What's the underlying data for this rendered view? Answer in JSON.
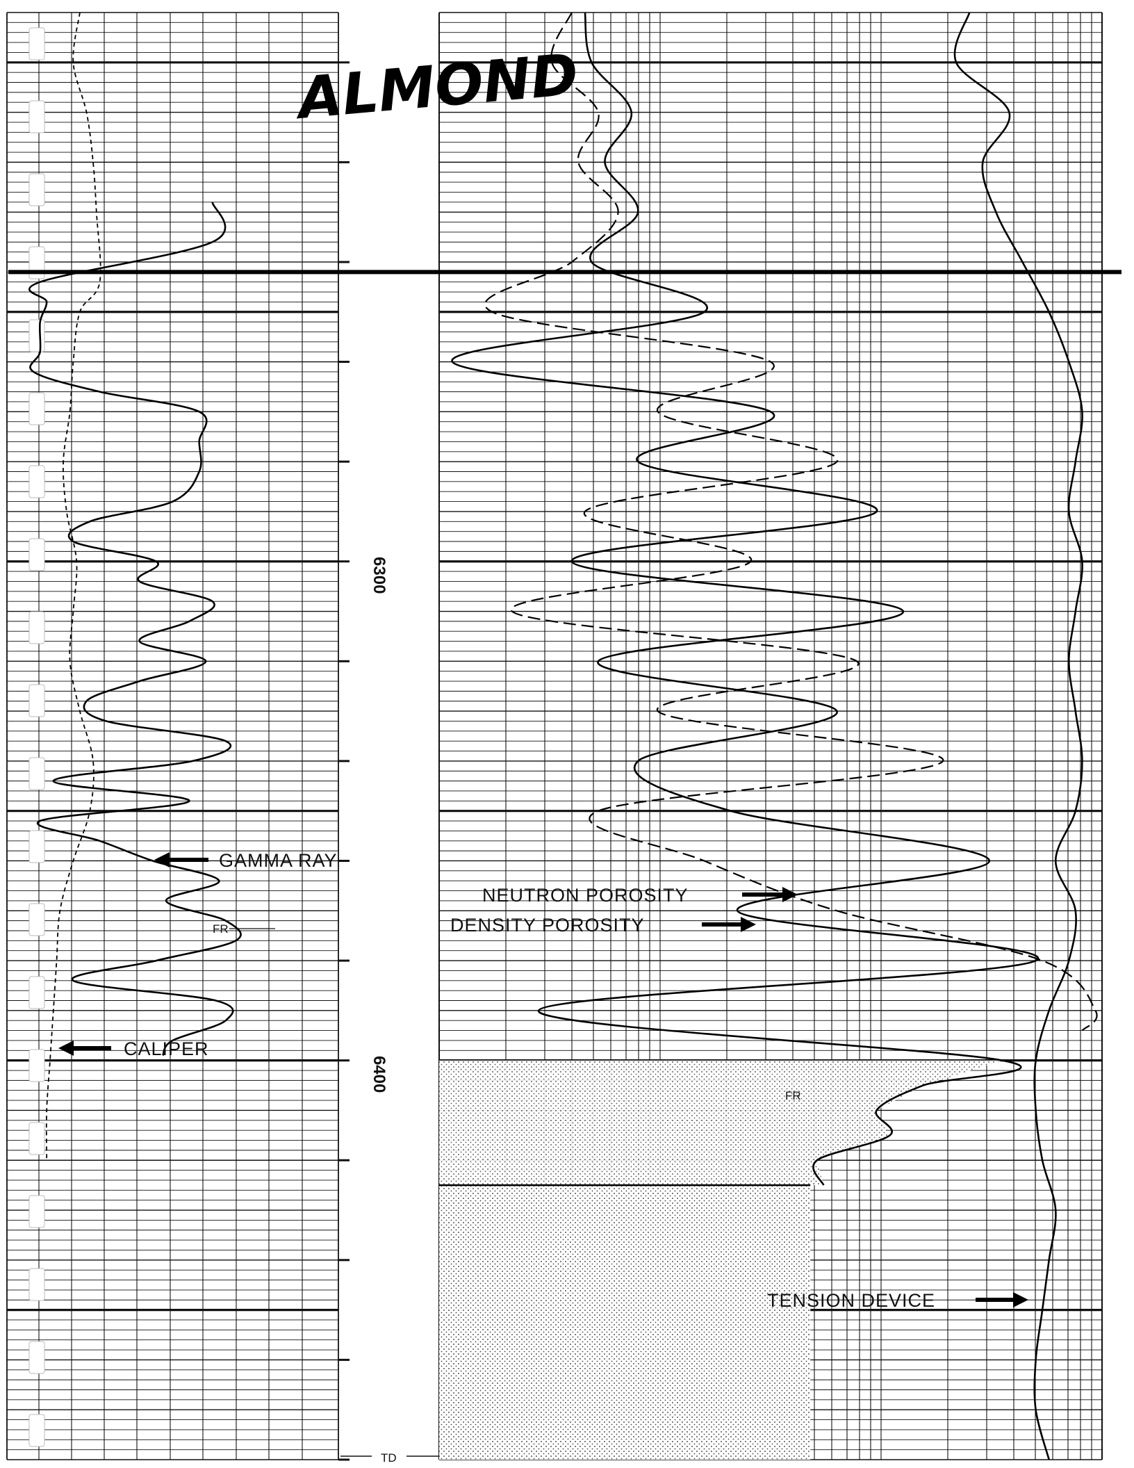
{
  "chart_data": {
    "type": "line",
    "depth_axis": {
      "ylim": [
        6190,
        6480
      ],
      "tick_labels": [
        "6300",
        "6400"
      ],
      "td_label": "TD"
    },
    "formation_tops": [
      {
        "name": "ALMOND",
        "depth": 6242
      }
    ],
    "annotations": [
      {
        "text": "GAMMA RAY",
        "series": "Gamma Ray"
      },
      {
        "text": "CALIPER",
        "series": "Caliper"
      },
      {
        "text": "NEUTRON POROSITY",
        "series": "Neutron Porosity"
      },
      {
        "text": "DENSITY POROSITY",
        "series": "Density Porosity"
      },
      {
        "text": "TENSION DEVICE",
        "series": "Tension Device"
      },
      {
        "text": "FR",
        "series": "Gamma Ray"
      },
      {
        "text": "FR",
        "series": "Density Porosity"
      }
    ],
    "series": [
      {
        "name": "Gamma Ray",
        "track": 1,
        "style": "solid",
        "xlim": [
          0,
          1
        ],
        "depths": [
          6228,
          6236,
          6244,
          6248,
          6252,
          6258,
          6262,
          6266,
          6270,
          6276,
          6282,
          6288,
          6292,
          6296,
          6300,
          6304,
          6308,
          6312,
          6316,
          6320,
          6324,
          6328,
          6332,
          6336,
          6340,
          6344,
          6348,
          6352,
          6356,
          6360,
          6364,
          6368,
          6372,
          6376,
          6380,
          6384,
          6388,
          6392,
          6396,
          6399
        ],
        "values": [
          0.62,
          0.62,
          0.1,
          0.12,
          0.1,
          0.1,
          0.08,
          0.28,
          0.58,
          0.58,
          0.58,
          0.5,
          0.25,
          0.2,
          0.45,
          0.4,
          0.62,
          0.55,
          0.4,
          0.6,
          0.4,
          0.24,
          0.3,
          0.66,
          0.56,
          0.14,
          0.55,
          0.1,
          0.28,
          0.44,
          0.64,
          0.48,
          0.66,
          0.69,
          0.45,
          0.2,
          0.63,
          0.66,
          0.5,
          0.47
        ]
      },
      {
        "name": "Caliper",
        "track": 1,
        "style": "dashed",
        "xlim": [
          0,
          1
        ],
        "depths": [
          6190,
          6200,
          6210,
          6220,
          6230,
          6244,
          6250,
          6260,
          6270,
          6280,
          6290,
          6300,
          6310,
          6320,
          6330,
          6340,
          6350,
          6360,
          6370,
          6380,
          6390,
          6400,
          6410,
          6420
        ],
        "values": [
          0.22,
          0.2,
          0.24,
          0.26,
          0.27,
          0.28,
          0.22,
          0.2,
          0.19,
          0.17,
          0.18,
          0.21,
          0.2,
          0.19,
          0.22,
          0.26,
          0.25,
          0.2,
          0.16,
          0.15,
          0.14,
          0.13,
          0.12,
          0.12
        ]
      },
      {
        "name": "Neutron Porosity",
        "track": 2,
        "style": "long-dash",
        "xlim": [
          0,
          1
        ],
        "depths": [
          6190,
          6200,
          6210,
          6220,
          6230,
          6240,
          6250,
          6260,
          6270,
          6280,
          6290,
          6300,
          6310,
          6320,
          6330,
          6340,
          6350,
          6360,
          6370,
          6380,
          6390,
          6394
        ],
        "values": [
          0.2,
          0.17,
          0.24,
          0.21,
          0.27,
          0.2,
          0.08,
          0.5,
          0.33,
          0.6,
          0.22,
          0.47,
          0.11,
          0.63,
          0.33,
          0.76,
          0.24,
          0.4,
          0.6,
          0.91,
          0.99,
          0.97
        ]
      },
      {
        "name": "Density Porosity",
        "track": 2,
        "style": "solid",
        "xlim": [
          0,
          1
        ],
        "depths": [
          6190,
          6200,
          6210,
          6220,
          6230,
          6240,
          6250,
          6260,
          6270,
          6280,
          6290,
          6300,
          6310,
          6320,
          6330,
          6340,
          6350,
          6360,
          6370,
          6380,
          6390,
          6400,
          6405,
          6410,
          6415,
          6420,
          6425
        ],
        "values": [
          0.22,
          0.23,
          0.29,
          0.25,
          0.3,
          0.23,
          0.4,
          0.02,
          0.5,
          0.3,
          0.66,
          0.2,
          0.7,
          0.24,
          0.6,
          0.3,
          0.44,
          0.83,
          0.45,
          0.9,
          0.15,
          0.85,
          0.73,
          0.66,
          0.68,
          0.57,
          0.58
        ]
      },
      {
        "name": "Tension Device",
        "track": 2,
        "style": "solid",
        "xlim": [
          0,
          1
        ],
        "depths": [
          6190,
          6200,
          6210,
          6220,
          6230,
          6240,
          6250,
          6260,
          6270,
          6280,
          6290,
          6300,
          6310,
          6320,
          6330,
          6340,
          6350,
          6360,
          6370,
          6380,
          6390,
          6400,
          6410,
          6420,
          6430,
          6440,
          6450,
          6460,
          6470,
          6480
        ],
        "values": [
          0.8,
          0.78,
          0.86,
          0.82,
          0.84,
          0.88,
          0.92,
          0.95,
          0.97,
          0.96,
          0.95,
          0.97,
          0.96,
          0.95,
          0.96,
          0.97,
          0.96,
          0.93,
          0.96,
          0.95,
          0.92,
          0.9,
          0.9,
          0.91,
          0.93,
          0.92,
          0.91,
          0.9,
          0.9,
          0.92
        ]
      }
    ],
    "grid": true
  }
}
